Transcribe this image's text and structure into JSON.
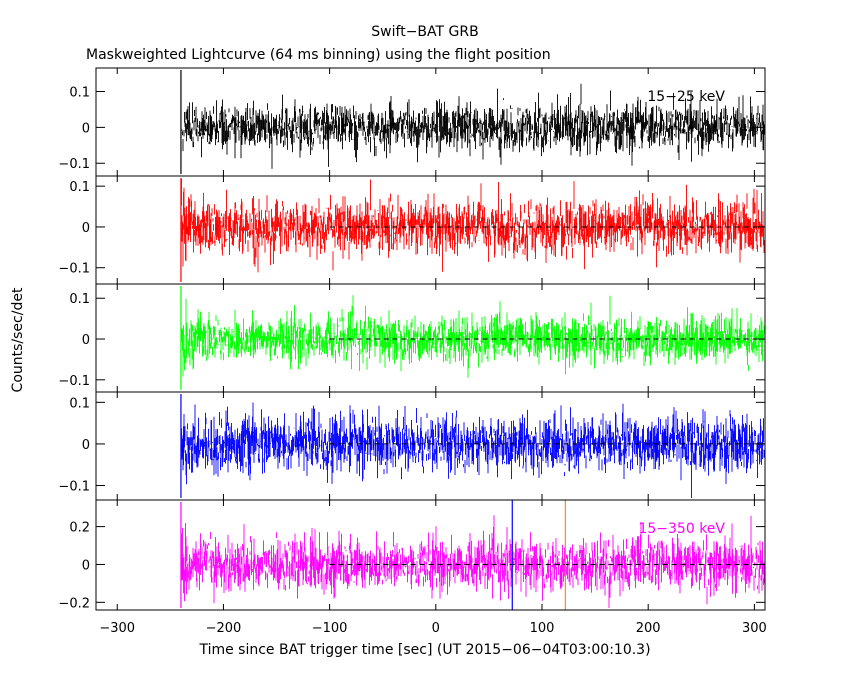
{
  "chart_data": {
    "type": "line",
    "title": "Swift−BAT GRB",
    "subtitle": "Maskweighted Lightcurve (64 ms binning) using the flight position",
    "xlabel": "Time since BAT trigger time [sec] (UT 2015−06−04T03:00:10.3)",
    "ylabel": "Counts/sec/det",
    "xlim": [
      -320,
      310
    ],
    "data_start": -240,
    "x_ticks": [
      -300,
      -200,
      -100,
      0,
      100,
      200,
      300
    ],
    "x_tick_labels": [
      "−300",
      "−200",
      "−100",
      "0",
      "100",
      "200",
      "300"
    ],
    "background_line_start": -100,
    "markers": [
      {
        "x": 72,
        "color": "#0000ff"
      },
      {
        "x": 122,
        "color": "#ff8c00"
      }
    ],
    "panels": [
      {
        "band": "15−25 keV",
        "color": "#000000",
        "ylim": [
          -0.13,
          0.16
        ],
        "y_ticks": [
          -0.1,
          0,
          0.1
        ],
        "y_tick_labels": [
          "−0.1",
          "0",
          "0.1"
        ],
        "noise_sigma": 0.032,
        "show_background_line": false
      },
      {
        "band": "",
        "color": "#ff0000",
        "ylim": [
          -0.135,
          0.12
        ],
        "y_ticks": [
          -0.1,
          0,
          0.1
        ],
        "y_tick_labels": [
          "−0.1",
          "0",
          "0.1"
        ],
        "noise_sigma": 0.033,
        "show_background_line": true
      },
      {
        "band": "",
        "color": "#00ff00",
        "ylim": [
          -0.125,
          0.13
        ],
        "y_ticks": [
          -0.1,
          0,
          0.1
        ],
        "y_tick_labels": [
          "−0.1",
          "0",
          "0.1"
        ],
        "noise_sigma": 0.028,
        "show_background_line": true
      },
      {
        "band": "",
        "color": "#0000ff",
        "ylim": [
          -0.13,
          0.12
        ],
        "y_ticks": [
          -0.1,
          0,
          0.1
        ],
        "y_tick_labels": [
          "−0.1",
          "0",
          "0.1"
        ],
        "noise_sigma": 0.033,
        "show_background_line": true
      },
      {
        "band": "15−350 keV",
        "color": "#ff00ff",
        "ylim": [
          -0.23,
          0.33
        ],
        "y_ticks": [
          -0.2,
          0,
          0.2
        ],
        "y_tick_labels": [
          "−0.2",
          "0",
          "0.2"
        ],
        "noise_sigma": 0.068,
        "show_background_line": true
      }
    ]
  }
}
